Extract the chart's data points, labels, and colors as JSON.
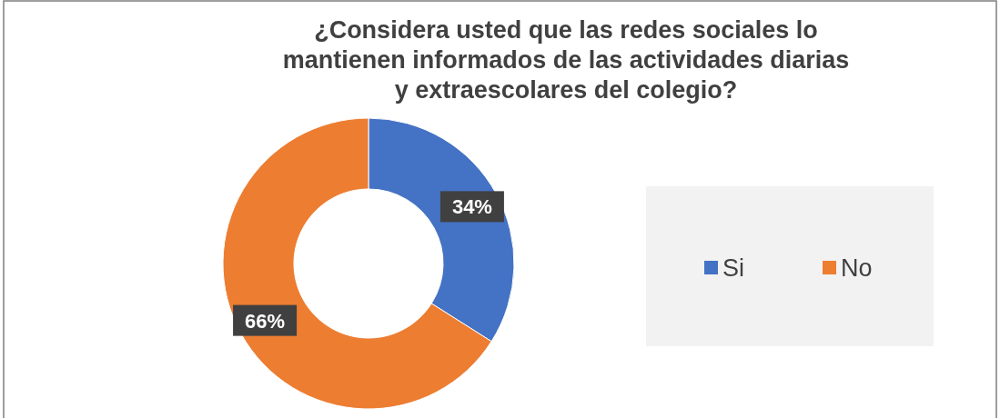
{
  "chart_data": {
    "type": "donut",
    "title": "¿Considera usted que las redes sociales lo mantienen informados de las actividades diarias y extraescolares del colegio?",
    "categories": [
      "Si",
      "No"
    ],
    "values": [
      34,
      66
    ],
    "colors": [
      "#4472c4",
      "#ed7d31"
    ],
    "value_labels": [
      "34%",
      "66%"
    ],
    "legend": "right"
  }
}
